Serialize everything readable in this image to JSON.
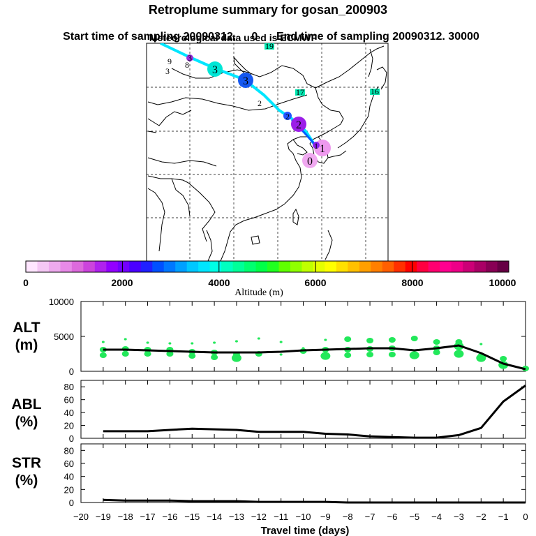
{
  "title": "Retroplume summary for gosan_200903",
  "subtitle_start": "Start time of sampling 20090312.     0",
  "subtitle_end": "End time of sampling 20090312. 30000",
  "subtitle_met": "Meteorological data used is ECMWF",
  "colorbar": {
    "labels": [
      "0",
      "2000",
      "4000",
      "6000",
      "8000",
      "10000"
    ],
    "title": "Altitude  (m)",
    "colors": [
      "#ffe6ff",
      "#f5c8f5",
      "#eeaaee",
      "#e88ae8",
      "#dd6add",
      "#cc44dd",
      "#b022ee",
      "#9300ff",
      "#7300ff",
      "#4a00ff",
      "#2020ff",
      "#0050ff",
      "#0078ff",
      "#00a0ff",
      "#00c8ff",
      "#00e6ff",
      "#00ffe6",
      "#00ffc0",
      "#00ff99",
      "#00ff70",
      "#00ff48",
      "#20ff20",
      "#60ff00",
      "#90ff00",
      "#c0ff00",
      "#e6ff00",
      "#ffff00",
      "#ffe000",
      "#ffc000",
      "#ff9f00",
      "#ff7f00",
      "#ff5f00",
      "#ff3000",
      "#ff0000",
      "#ff0040",
      "#ff0070",
      "#ff0090",
      "#ee0088",
      "#cc0077",
      "#aa0066",
      "#880055",
      "#660044"
    ]
  },
  "map": {
    "points": [
      {
        "label": "0",
        "color": "#f0a8f0",
        "size": "large"
      },
      {
        "label": "1",
        "color": "#ee99ee",
        "size": "large"
      },
      {
        "label": "1",
        "color": "#8a20ee",
        "size": "small"
      },
      {
        "label": "2",
        "color": "#9b1ee8",
        "size": "large"
      },
      {
        "label": "2",
        "color": "#2255ff",
        "size": "small"
      },
      {
        "label": "3",
        "color": "#1558f0",
        "size": "large"
      },
      {
        "label": "3",
        "color": "#00e6d6",
        "size": "large"
      },
      {
        "label": "3",
        "color": "#9b30e0",
        "size": "small"
      },
      {
        "label": "3",
        "color": "#ffffff",
        "size": "text"
      },
      {
        "label": "9",
        "color": "#66cc00",
        "size": "text"
      },
      {
        "label": "8",
        "color": "#33dd00",
        "size": "text"
      },
      {
        "label": "19",
        "color": "#00e6b0",
        "size": "text"
      },
      {
        "label": "17",
        "color": "#00e6b0",
        "size": "text"
      },
      {
        "label": "16",
        "color": "#00e6b0",
        "size": "text"
      },
      {
        "label": "2",
        "color": "#ffffff",
        "size": "text"
      }
    ]
  },
  "panels": {
    "alt": {
      "label_top": "ALT",
      "label_bottom": "(m)"
    },
    "abl": {
      "label_top": "ABL",
      "label_bottom": "(%)"
    },
    "str": {
      "label_top": "STR",
      "label_bottom": "(%)"
    }
  },
  "xaxis": {
    "title": "Travel time (days)",
    "ticks": [
      -20,
      -19,
      -18,
      -17,
      -16,
      -15,
      -14,
      -13,
      -12,
      -11,
      -10,
      -9,
      -8,
      -7,
      -6,
      -5,
      -4,
      -3,
      -2,
      -1,
      0
    ]
  },
  "chart_data": [
    {
      "type": "line",
      "title": "ALT",
      "ylabel": "(m)",
      "xlabel": "Travel time (days)",
      "xlim": [
        -20,
        0
      ],
      "ylim": [
        0,
        10000
      ],
      "yticks": [
        0,
        5000,
        10000
      ],
      "series": [
        {
          "name": "mean altitude",
          "color": "#000000",
          "x": [
            -19,
            -18,
            -17,
            -16,
            -15,
            -14,
            -13,
            -12,
            -11,
            -10,
            -9,
            -8,
            -7,
            -6,
            -5,
            -4,
            -3,
            -2,
            -1,
            0
          ],
          "values": [
            3100,
            3100,
            3000,
            2900,
            2800,
            2700,
            2700,
            2700,
            2800,
            3000,
            3100,
            3200,
            3300,
            3300,
            3000,
            3300,
            3700,
            2600,
            1100,
            300
          ]
        }
      ],
      "clusters": {
        "color": "#22e85a",
        "x": [
          -19,
          -19,
          -19,
          -18,
          -18,
          -18,
          -17,
          -17,
          -17,
          -16,
          -16,
          -16,
          -15,
          -15,
          -15,
          -14,
          -14,
          -14,
          -13,
          -13,
          -13,
          -12,
          -12,
          -11,
          -11,
          -10,
          -10,
          -9,
          -9,
          -9,
          -8,
          -8,
          -8,
          -7,
          -7,
          -7,
          -6,
          -6,
          -6,
          -5,
          -5,
          -4,
          -4,
          -4,
          -3,
          -3,
          -3,
          -2,
          -2,
          -2,
          -1,
          -1,
          0
        ],
        "y": [
          4200,
          3100,
          2300,
          4600,
          3200,
          2500,
          4100,
          3100,
          2500,
          4000,
          3100,
          2500,
          4000,
          2800,
          2200,
          4100,
          2700,
          2000,
          4300,
          2400,
          1900,
          4700,
          2500,
          4200,
          2400,
          3300,
          2900,
          4500,
          3100,
          2200,
          4600,
          3100,
          2300,
          4400,
          3200,
          2400,
          4500,
          3300,
          2400,
          4700,
          2300,
          4200,
          3300,
          2700,
          4200,
          3600,
          2500,
          3900,
          2200,
          1900,
          1800,
          900,
          400
        ],
        "sizes": [
          "s",
          "m",
          "m",
          "s",
          "m",
          "m",
          "s",
          "m",
          "m",
          "s",
          "m",
          "m",
          "s",
          "m",
          "m",
          "s",
          "m",
          "m",
          "s",
          "m",
          "l",
          "s",
          "m",
          "s",
          "s",
          "s",
          "m",
          "s",
          "m",
          "l",
          "m",
          "m",
          "m",
          "m",
          "m",
          "m",
          "m",
          "m",
          "m",
          "m",
          "l",
          "m",
          "m",
          "m",
          "m",
          "l",
          "l",
          "s",
          "m",
          "l",
          "m",
          "l",
          "m"
        ]
      }
    },
    {
      "type": "line",
      "title": "ABL",
      "ylabel": "(%)",
      "xlim": [
        -20,
        0
      ],
      "ylim": [
        0,
        90
      ],
      "yticks": [
        0,
        20,
        40,
        60,
        80
      ],
      "series": [
        {
          "name": "ABL fraction",
          "color": "#000000",
          "x": [
            -19,
            -18,
            -17,
            -16,
            -15,
            -14,
            -13,
            -12,
            -11,
            -10,
            -9,
            -8,
            -7,
            -6,
            -5,
            -4,
            -3,
            -2,
            -1,
            0
          ],
          "values": [
            11,
            11,
            11,
            13,
            15,
            14,
            13,
            10,
            10,
            10,
            7,
            6,
            3,
            2,
            1,
            1,
            5,
            16,
            57,
            82
          ]
        }
      ]
    },
    {
      "type": "line",
      "title": "STR",
      "ylabel": "(%)",
      "xlim": [
        -20,
        0
      ],
      "ylim": [
        0,
        90
      ],
      "yticks": [
        0,
        20,
        40,
        60,
        80
      ],
      "series": [
        {
          "name": "STR fraction",
          "color": "#000000",
          "x": [
            -19,
            -18,
            -17,
            -16,
            -15,
            -14,
            -13,
            -12,
            -11,
            -10,
            -9,
            -8,
            -7,
            -6,
            -5,
            -4,
            -3,
            -2,
            -1,
            0
          ],
          "values": [
            4,
            3,
            3,
            3,
            2,
            2,
            2,
            1,
            1,
            1,
            1,
            0,
            0,
            0,
            0,
            0,
            0,
            0,
            0,
            0
          ]
        }
      ]
    }
  ]
}
